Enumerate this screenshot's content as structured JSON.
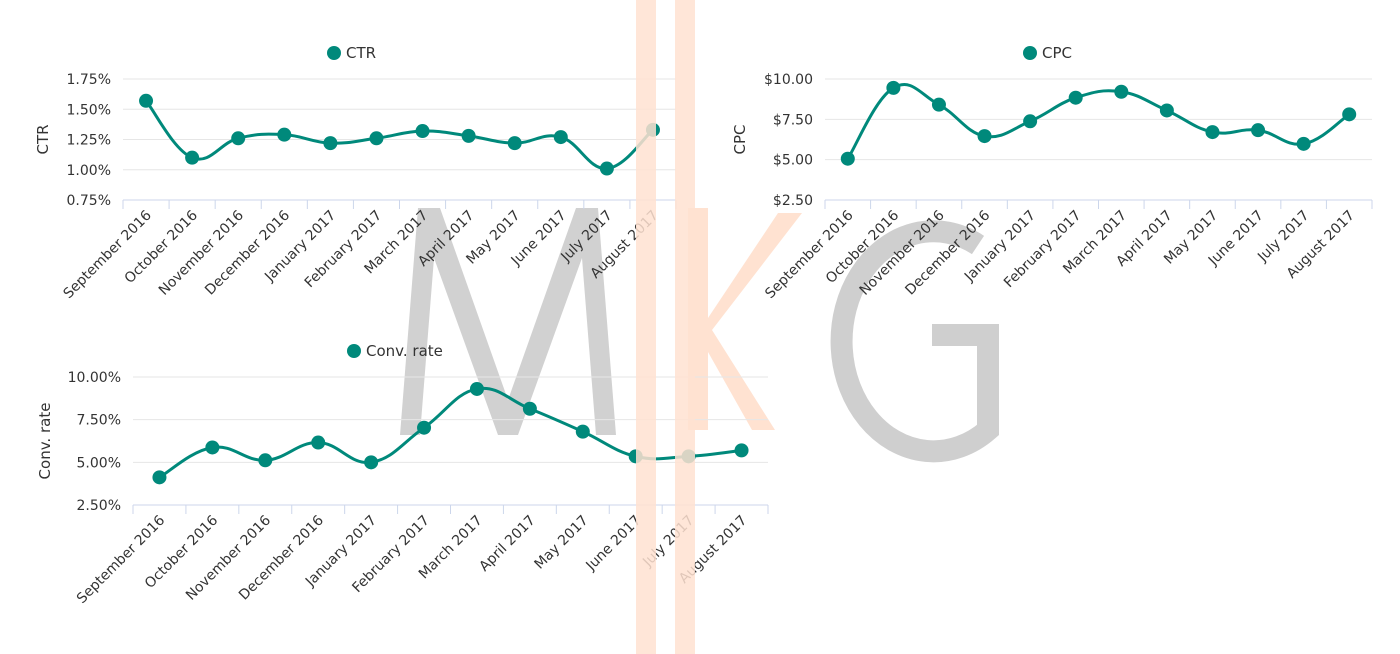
{
  "colors": {
    "series": "#00897b",
    "grid": "#e6e6e6",
    "axis": "#ccd6eb",
    "watermark_gray": "#cfcfcf",
    "watermark_orange": "#ffe2d1"
  },
  "watermark": {
    "letters": [
      "M",
      "K",
      "G"
    ]
  },
  "chart_data": [
    {
      "type": "line",
      "title": "",
      "legend": [
        "CTR"
      ],
      "legend_position": "top",
      "xlabel": "",
      "ylabel": "CTR",
      "ylim": [
        0.75,
        1.75
      ],
      "yticks": [
        "0.75%",
        "1.00%",
        "1.25%",
        "1.50%",
        "1.75%"
      ],
      "grid": true,
      "categories": [
        "September 2016",
        "October 2016",
        "November 2016",
        "December 2016",
        "January 2017",
        "February 2017",
        "March 2017",
        "April 2017",
        "May 2017",
        "June 2017",
        "July 2017",
        "August 2017"
      ],
      "series": [
        {
          "name": "CTR",
          "values": [
            1.57,
            1.1,
            1.26,
            1.29,
            1.22,
            1.26,
            1.32,
            1.28,
            1.22,
            1.27,
            1.01,
            1.33
          ]
        }
      ]
    },
    {
      "type": "line",
      "title": "",
      "legend": [
        "CPC"
      ],
      "legend_position": "top",
      "xlabel": "",
      "ylabel": "CPC",
      "ylim": [
        2.5,
        10.0
      ],
      "yticks": [
        "$2.50",
        "$5.00",
        "$7.50",
        "$10.00"
      ],
      "grid": true,
      "categories": [
        "September 2016",
        "October 2016",
        "November 2016",
        "December 2016",
        "January 2017",
        "February 2017",
        "March 2017",
        "April 2017",
        "May 2017",
        "June 2017",
        "July 2017",
        "August 2017"
      ],
      "series": [
        {
          "name": "CPC",
          "values": [
            5.06,
            9.45,
            8.41,
            6.46,
            7.38,
            8.84,
            9.21,
            8.05,
            6.71,
            6.83,
            5.98,
            7.81
          ]
        }
      ]
    },
    {
      "type": "line",
      "title": "",
      "legend": [
        "Conv. rate"
      ],
      "legend_position": "top",
      "xlabel": "",
      "ylabel": "Conv. rate",
      "ylim": [
        2.5,
        10.0
      ],
      "yticks": [
        "2.50%",
        "5.00%",
        "7.50%",
        "10.00%"
      ],
      "grid": true,
      "categories": [
        "September 2016",
        "October 2016",
        "November 2016",
        "December 2016",
        "January 2017",
        "February 2017",
        "March 2017",
        "April 2017",
        "May 2017",
        "June 2017",
        "July 2017",
        "August 2017"
      ],
      "series": [
        {
          "name": "Conv. rate",
          "values": [
            4.12,
            5.87,
            5.12,
            6.16,
            5.0,
            7.03,
            9.3,
            8.14,
            6.8,
            5.35,
            5.35,
            5.7
          ]
        }
      ]
    }
  ]
}
